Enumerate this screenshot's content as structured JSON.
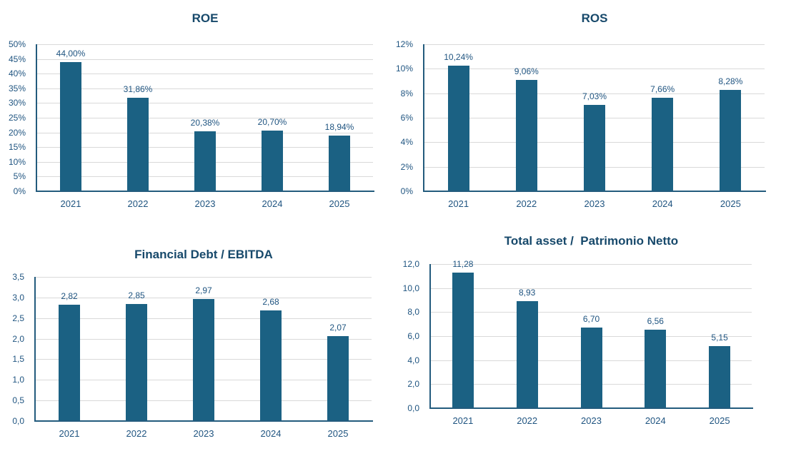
{
  "colors": {
    "bar": "#1B6183",
    "title": "#17496B",
    "label": "#1F5480",
    "axis": "#235B7D",
    "grid": "#D9D9D9"
  },
  "chart_data": [
    {
      "type": "bar",
      "title": "ROE",
      "categories": [
        "2021",
        "2022",
        "2023",
        "2024",
        "2025"
      ],
      "values": [
        44.0,
        31.86,
        20.38,
        20.7,
        18.94
      ],
      "value_labels": [
        "44,00%",
        "31,86%",
        "20,38%",
        "20,70%",
        "18,94%"
      ],
      "ylim": [
        0,
        50
      ],
      "yticks": [
        "50%",
        "45%",
        "40%",
        "35%",
        "30%",
        "25%",
        "20%",
        "15%",
        "10%",
        "5%",
        "0%"
      ],
      "grid": "on",
      "legend": "none",
      "xlabel": "",
      "ylabel": ""
    },
    {
      "type": "bar",
      "title": "ROS",
      "categories": [
        "2021",
        "2022",
        "2023",
        "2024",
        "2025"
      ],
      "values": [
        10.24,
        9.06,
        7.03,
        7.66,
        8.28
      ],
      "value_labels": [
        "10,24%",
        "9,06%",
        "7,03%",
        "7,66%",
        "8,28%"
      ],
      "ylim": [
        0,
        12
      ],
      "yticks": [
        "12%",
        "10%",
        "8%",
        "6%",
        "4%",
        "2%",
        "0%"
      ],
      "grid": "on",
      "legend": "none",
      "xlabel": "",
      "ylabel": ""
    },
    {
      "type": "bar",
      "title": "Financial Debt / EBITDA",
      "categories": [
        "2021",
        "2022",
        "2023",
        "2024",
        "2025"
      ],
      "values": [
        2.82,
        2.85,
        2.97,
        2.68,
        2.07
      ],
      "value_labels": [
        "2,82",
        "2,85",
        "2,97",
        "2,68",
        "2,07"
      ],
      "ylim": [
        0,
        3.5
      ],
      "yticks": [
        "3,5",
        "3,0",
        "2,5",
        "2,0",
        "1,5",
        "1,0",
        "0,5",
        "0,0"
      ],
      "grid": "on",
      "legend": "none",
      "xlabel": "",
      "ylabel": ""
    },
    {
      "type": "bar",
      "title": "Total asset /  Patrimonio Netto",
      "categories": [
        "2021",
        "2022",
        "2023",
        "2024",
        "2025"
      ],
      "values": [
        11.28,
        8.93,
        6.7,
        6.56,
        5.15
      ],
      "value_labels": [
        "11,28",
        "8,93",
        "6,70",
        "6,56",
        "5,15"
      ],
      "ylim": [
        0,
        12
      ],
      "yticks": [
        "12,0",
        "10,0",
        "8,0",
        "6,0",
        "4,0",
        "2,0",
        "0,0"
      ],
      "grid": "on",
      "legend": "none",
      "xlabel": "",
      "ylabel": ""
    }
  ]
}
